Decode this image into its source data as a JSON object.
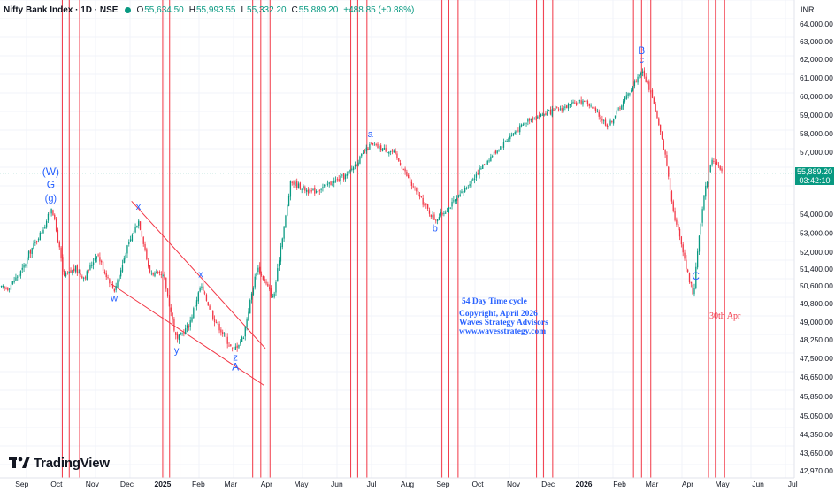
{
  "header": {
    "symbol": "Nifty Bank Index · 1D · NSE",
    "open_label": "O",
    "open": "55,634.50",
    "high_label": "H",
    "high": "55,993.55",
    "low_label": "L",
    "low": "55,332.20",
    "close_label": "C",
    "close": "55,889.20",
    "change": "+488.85 (+0.88%)"
  },
  "currency": "INR",
  "current_price": {
    "price": "55,889.20",
    "countdown": "03:42:10",
    "value": 55889.2
  },
  "brand": {
    "name": "TradingView",
    "logo": "tradingview-logo-icon"
  },
  "colors": {
    "up": "#089981",
    "down": "#f23645",
    "cycle_line": "#f23645",
    "wave_label": "#2962ff",
    "trendline": "#f23645"
  },
  "chart_data": {
    "type": "candlestick",
    "instrument": "Nifty Bank Index",
    "x_axis_labels": [
      "Sep",
      "Oct",
      "Nov",
      "Dec",
      "2025",
      "Feb",
      "Mar",
      "Apr",
      "May",
      "Jun",
      "Jul",
      "Aug",
      "Sep",
      "Oct",
      "Nov",
      "Dec",
      "2026",
      "Feb",
      "Mar",
      "Apr",
      "May",
      "Jun",
      "Jul"
    ],
    "y_axis_labels": [
      "64,000.00",
      "63,000.00",
      "62,000.00",
      "61,000.00",
      "60,000.00",
      "59,000.00",
      "58,000.00",
      "57,000.00",
      "55,889.20",
      "54,000.00",
      "53,000.00",
      "52,000.00",
      "51,400.00",
      "50,600.00",
      "49,800.00",
      "49,000.00",
      "48,250.00",
      "47,500.00",
      "46,650.00",
      "45,850.00",
      "45,050.00",
      "44,350.00",
      "43,650.00",
      "42,970.00"
    ],
    "ylim": [
      42970,
      64500
    ],
    "price_path": [
      {
        "date": "2024-08-20",
        "price": 50500
      },
      {
        "date": "2024-09-02",
        "price": 51400
      },
      {
        "date": "2024-09-20",
        "price": 53300
      },
      {
        "date": "2024-09-27",
        "price": 54400
      },
      {
        "date": "2024-10-07",
        "price": 51000
      },
      {
        "date": "2024-10-17",
        "price": 51400
      },
      {
        "date": "2024-10-25",
        "price": 51000
      },
      {
        "date": "2024-11-05",
        "price": 52000
      },
      {
        "date": "2024-11-20",
        "price": 50400
      },
      {
        "date": "2024-12-01",
        "price": 52200
      },
      {
        "date": "2024-12-11",
        "price": 53700
      },
      {
        "date": "2024-12-20",
        "price": 51300
      },
      {
        "date": "2025-01-02",
        "price": 51000
      },
      {
        "date": "2025-01-13",
        "price": 48200
      },
      {
        "date": "2025-01-24",
        "price": 48900
      },
      {
        "date": "2025-02-03",
        "price": 50600
      },
      {
        "date": "2025-02-14",
        "price": 49200
      },
      {
        "date": "2025-03-03",
        "price": 47800
      },
      {
        "date": "2025-03-12",
        "price": 48400
      },
      {
        "date": "2025-03-24",
        "price": 51500
      },
      {
        "date": "2025-04-07",
        "price": 50000
      },
      {
        "date": "2025-04-22",
        "price": 55500
      },
      {
        "date": "2025-05-10",
        "price": 55000
      },
      {
        "date": "2025-06-10",
        "price": 55800
      },
      {
        "date": "2025-06-30",
        "price": 57400
      },
      {
        "date": "2025-07-20",
        "price": 57000
      },
      {
        "date": "2025-08-05",
        "price": 55300
      },
      {
        "date": "2025-08-25",
        "price": 53700
      },
      {
        "date": "2025-09-15",
        "price": 54800
      },
      {
        "date": "2025-10-10",
        "price": 56600
      },
      {
        "date": "2025-10-28",
        "price": 57800
      },
      {
        "date": "2025-11-15",
        "price": 58800
      },
      {
        "date": "2025-12-10",
        "price": 59300
      },
      {
        "date": "2026-01-02",
        "price": 59800
      },
      {
        "date": "2026-01-22",
        "price": 58400
      },
      {
        "date": "2026-02-10",
        "price": 60300
      },
      {
        "date": "2026-02-20",
        "price": 61400
      },
      {
        "date": "2026-03-01",
        "price": 60100
      },
      {
        "date": "2026-03-12",
        "price": 57000
      },
      {
        "date": "2026-03-20",
        "price": 54000
      },
      {
        "date": "2026-03-31",
        "price": 51400
      },
      {
        "date": "2026-04-06",
        "price": 50200
      },
      {
        "date": "2026-04-14",
        "price": 54500
      },
      {
        "date": "2026-04-22",
        "price": 56700
      },
      {
        "date": "2026-04-27",
        "price": 56200
      },
      {
        "date": "2026-05-01",
        "price": 55889
      }
    ],
    "wave_labels": [
      {
        "text": "(W)",
        "date": "2024-09-26",
        "price": 55800
      },
      {
        "text": "G",
        "date": "2024-09-26",
        "price": 55200
      },
      {
        "text": "(g)",
        "date": "2024-09-26",
        "price": 54600
      },
      {
        "text": "w",
        "date": "2024-11-20",
        "price": 49900
      },
      {
        "text": "x",
        "date": "2024-12-11",
        "price": 54200
      },
      {
        "text": "y",
        "date": "2025-01-13",
        "price": 47700
      },
      {
        "text": "x",
        "date": "2025-02-03",
        "price": 51000
      },
      {
        "text": "z",
        "date": "2025-03-05",
        "price": 47400
      },
      {
        "text": "A",
        "date": "2025-03-05",
        "price": 46950
      },
      {
        "text": "a",
        "date": "2025-06-30",
        "price": 57800
      },
      {
        "text": "b",
        "date": "2025-08-25",
        "price": 53100
      },
      {
        "text": "B",
        "date": "2026-02-20",
        "price": 62300
      },
      {
        "text": "c",
        "date": "2026-02-20",
        "price": 61800
      },
      {
        "text": "C",
        "date": "2026-04-08",
        "price": 50900
      }
    ],
    "trendlines": [
      {
        "from": {
          "date": "2024-12-05",
          "price": 54600
        },
        "to": {
          "date": "2025-03-31",
          "price": 47900
        }
      },
      {
        "from": {
          "date": "2024-11-17",
          "price": 50700
        },
        "to": {
          "date": "2025-03-30",
          "price": 46300
        }
      }
    ],
    "cycle_dates": [
      "2024-10-06",
      "2024-10-12",
      "2024-10-21",
      "2025-01-01",
      "2025-01-07",
      "2025-01-16",
      "2025-03-20",
      "2025-03-27",
      "2025-04-04",
      "2025-06-13",
      "2025-06-19",
      "2025-06-27",
      "2025-08-31",
      "2025-09-06",
      "2025-09-14",
      "2025-11-21",
      "2025-11-27",
      "2025-12-05",
      "2026-02-13",
      "2026-02-20",
      "2026-02-28",
      "2026-04-19",
      "2026-04-25",
      "2026-05-03"
    ],
    "annotations": {
      "cycle_title": "54 Day Time cycle",
      "copyright": "Copyright, April 2026",
      "company": "Waves Strategy Advisors",
      "website": "www.wavesstrategy.com",
      "date_note": "30th Apr"
    }
  }
}
